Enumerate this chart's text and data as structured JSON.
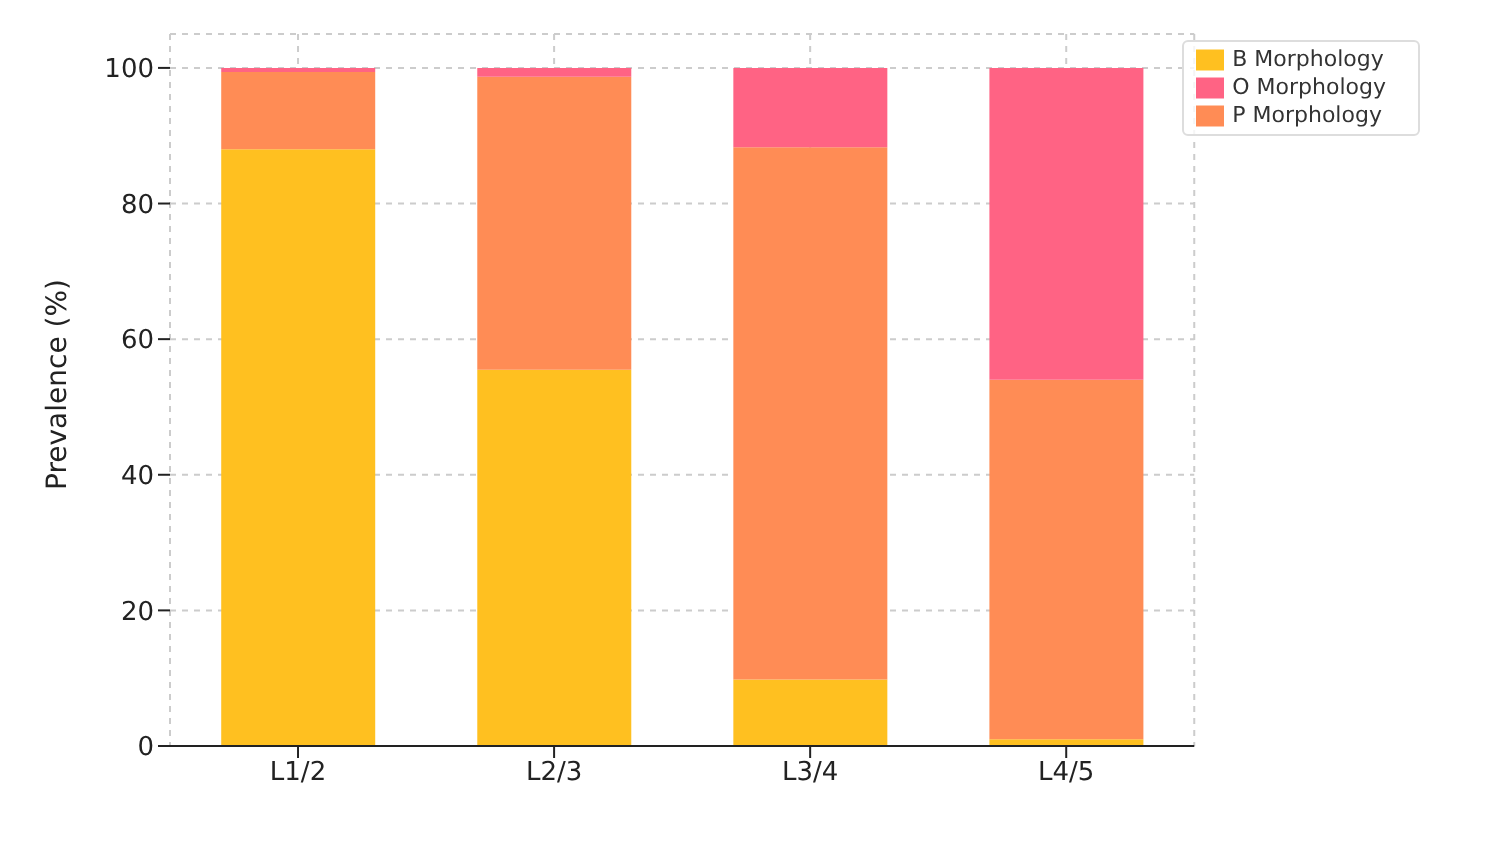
{
  "chart_data": {
    "type": "bar",
    "stacked": true,
    "ylabel": "Prevalence (%)",
    "categories": [
      "L1/2",
      "L2/3",
      "L3/4",
      "L4/5"
    ],
    "series": [
      {
        "name": "B Morphology",
        "color": "#ffc020",
        "values": [
          88,
          55.5,
          9.8,
          1
        ]
      },
      {
        "name": "P Morphology",
        "color": "#ff8c55",
        "values": [
          11.4,
          43.2,
          78.5,
          53
        ]
      },
      {
        "name": "O Morphology",
        "color": "#ff6384",
        "values": [
          0.6,
          1.3,
          11.7,
          46
        ]
      }
    ],
    "ylim": [
      0,
      105
    ],
    "yticks": [
      0,
      20,
      40,
      60,
      80,
      100
    ],
    "grid": true,
    "legend": "top right"
  }
}
